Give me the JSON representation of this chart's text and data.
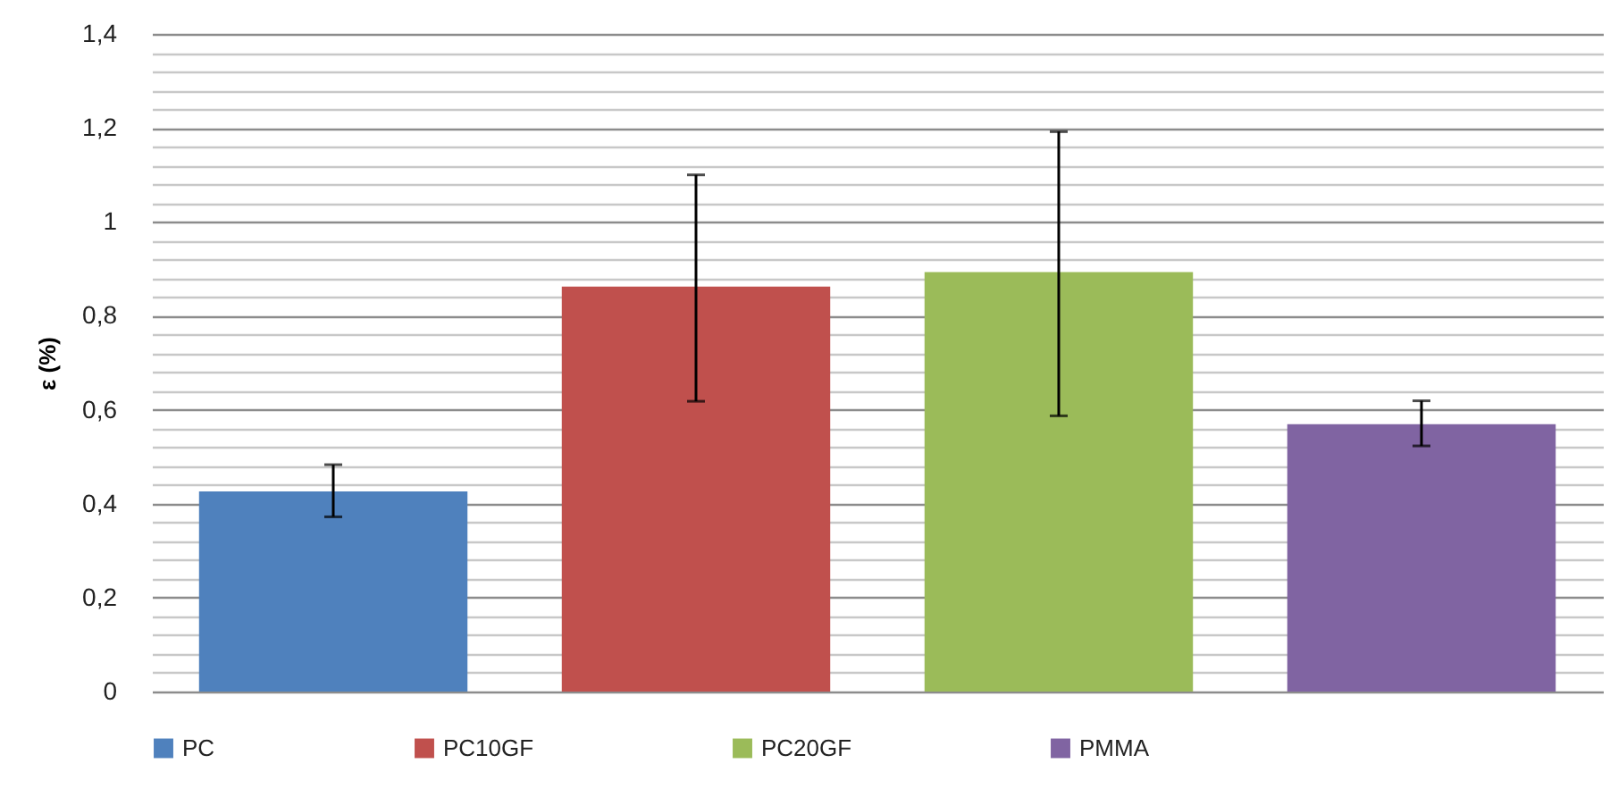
{
  "chart_data": {
    "type": "bar",
    "ylabel": "ε (%)",
    "categories": [
      null,
      null,
      null,
      null
    ],
    "series": [
      {
        "name": "PC",
        "color": "#4f81bd",
        "values": [
          0.426,
          null,
          null,
          null
        ],
        "errors": [
          [
            0.372,
            0.483
          ],
          null,
          null,
          null
        ]
      },
      {
        "name": "PC10GF",
        "color": "#c0504d",
        "values": [
          null,
          0.862,
          null,
          null
        ],
        "errors": [
          null,
          [
            0.618,
            1.1
          ],
          null,
          null
        ]
      },
      {
        "name": "PC20GF",
        "color": "#9bbb59",
        "values": [
          null,
          null,
          0.893,
          null
        ],
        "errors": [
          null,
          null,
          [
            0.587,
            1.192
          ],
          null
        ]
      },
      {
        "name": "PMMA",
        "color": "#8064a2",
        "values": [
          null,
          null,
          null,
          0.569
        ],
        "errors": [
          null,
          null,
          null,
          [
            0.523,
            0.619
          ]
        ]
      }
    ],
    "ylim": [
      0,
      1.4
    ],
    "yticks": [
      0,
      {
        "value": 0.04,
        "label": null
      },
      {
        "value": 0.08,
        "label": null
      },
      {
        "value": 0.12,
        "label": null
      },
      {
        "value": 0.16,
        "label": null
      },
      {
        "value": 0.2,
        "label": "0,2"
      },
      {
        "value": 0.24,
        "label": null
      },
      {
        "value": 0.28,
        "label": null
      },
      {
        "value": 0.32,
        "label": null
      },
      {
        "value": 0.36,
        "label": null
      },
      {
        "value": 0.4,
        "label": "0,4"
      },
      {
        "value": 0.44,
        "label": null
      },
      {
        "value": 0.48,
        "label": null
      },
      {
        "value": 0.52,
        "label": null
      },
      {
        "value": 0.56,
        "label": null
      },
      {
        "value": 0.6,
        "label": "0,6"
      },
      {
        "value": 0.64,
        "label": null
      },
      {
        "value": 0.68,
        "label": null
      },
      {
        "value": 0.72,
        "label": null
      },
      {
        "value": 0.76,
        "label": null
      },
      {
        "value": 0.8,
        "label": "0,8"
      },
      {
        "value": 0.84,
        "label": null
      },
      {
        "value": 0.88,
        "label": null
      },
      {
        "value": 0.92,
        "label": null
      },
      {
        "value": 0.96,
        "label": null
      },
      1,
      {
        "value": 1.04,
        "label": null
      },
      {
        "value": 1.08,
        "label": null
      },
      {
        "value": 1.12,
        "label": null
      },
      {
        "value": 1.16,
        "label": null
      },
      {
        "value": 1.2,
        "label": "1,2"
      },
      {
        "value": 1.24,
        "label": null
      },
      {
        "value": 1.28,
        "label": null
      },
      {
        "value": 1.32,
        "label": null
      },
      {
        "value": 1.36,
        "label": null
      },
      {
        "value": 1.4,
        "label": "1,4"
      }
    ],
    "grid": "y",
    "legend": "bottom"
  }
}
